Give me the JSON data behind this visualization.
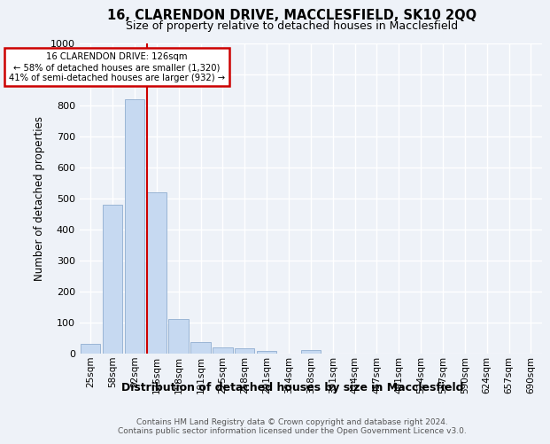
{
  "title": "16, CLARENDON DRIVE, MACCLESFIELD, SK10 2QQ",
  "subtitle": "Size of property relative to detached houses in Macclesfield",
  "xlabel": "Distribution of detached houses by size in Macclesfield",
  "ylabel": "Number of detached properties",
  "bar_labels": [
    "25sqm",
    "58sqm",
    "92sqm",
    "125sqm",
    "158sqm",
    "191sqm",
    "225sqm",
    "258sqm",
    "291sqm",
    "324sqm",
    "358sqm",
    "391sqm",
    "424sqm",
    "457sqm",
    "491sqm",
    "524sqm",
    "557sqm",
    "590sqm",
    "624sqm",
    "657sqm",
    "690sqm"
  ],
  "bar_values": [
    30,
    480,
    820,
    520,
    110,
    35,
    20,
    15,
    8,
    0,
    10,
    0,
    0,
    0,
    0,
    0,
    0,
    0,
    0,
    0,
    0
  ],
  "bar_color": "#c6d9f1",
  "bar_edge_color": "#9ab5d5",
  "property_line_color": "#cc0000",
  "annotation_line1": "16 CLARENDON DRIVE: 126sqm",
  "annotation_line2": "← 58% of detached houses are smaller (1,320)",
  "annotation_line3": "41% of semi-detached houses are larger (932) →",
  "annotation_box_color": "#ffffff",
  "annotation_box_edge": "#cc0000",
  "ylim": [
    0,
    1000
  ],
  "yticks": [
    0,
    100,
    200,
    300,
    400,
    500,
    600,
    700,
    800,
    900,
    1000
  ],
  "background_color": "#eef2f8",
  "grid_color": "#ffffff",
  "footer_line1": "Contains HM Land Registry data © Crown copyright and database right 2024.",
  "footer_line2": "Contains public sector information licensed under the Open Government Licence v3.0."
}
